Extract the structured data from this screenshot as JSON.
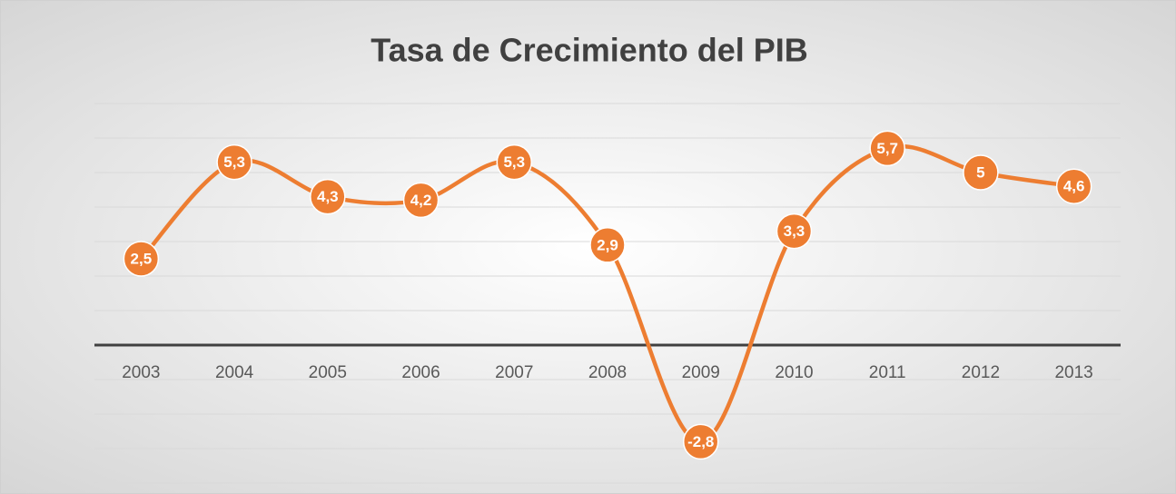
{
  "chart_data": {
    "type": "line",
    "title": "Tasa de Crecimiento del PIB",
    "categories": [
      "2003",
      "2004",
      "2005",
      "2006",
      "2007",
      "2008",
      "2009",
      "2010",
      "2011",
      "2012",
      "2013"
    ],
    "series": [
      {
        "name": "PIB",
        "color": "#ed7d31",
        "values": [
          2.5,
          5.3,
          4.3,
          4.2,
          5.3,
          2.9,
          -2.8,
          3.3,
          5.7,
          5,
          4.6
        ],
        "value_labels": [
          "2,5",
          "5,3",
          "4,3",
          "4,2",
          "5,3",
          "2,9",
          "-2,8",
          "3,3",
          "5,7",
          "5",
          "4,6"
        ]
      }
    ],
    "ylim": [
      -4,
      7
    ],
    "yticks": [
      -4,
      -3,
      -2,
      -1,
      0,
      1,
      2,
      3,
      4,
      5,
      6,
      7
    ],
    "grid": true,
    "smooth": true
  }
}
